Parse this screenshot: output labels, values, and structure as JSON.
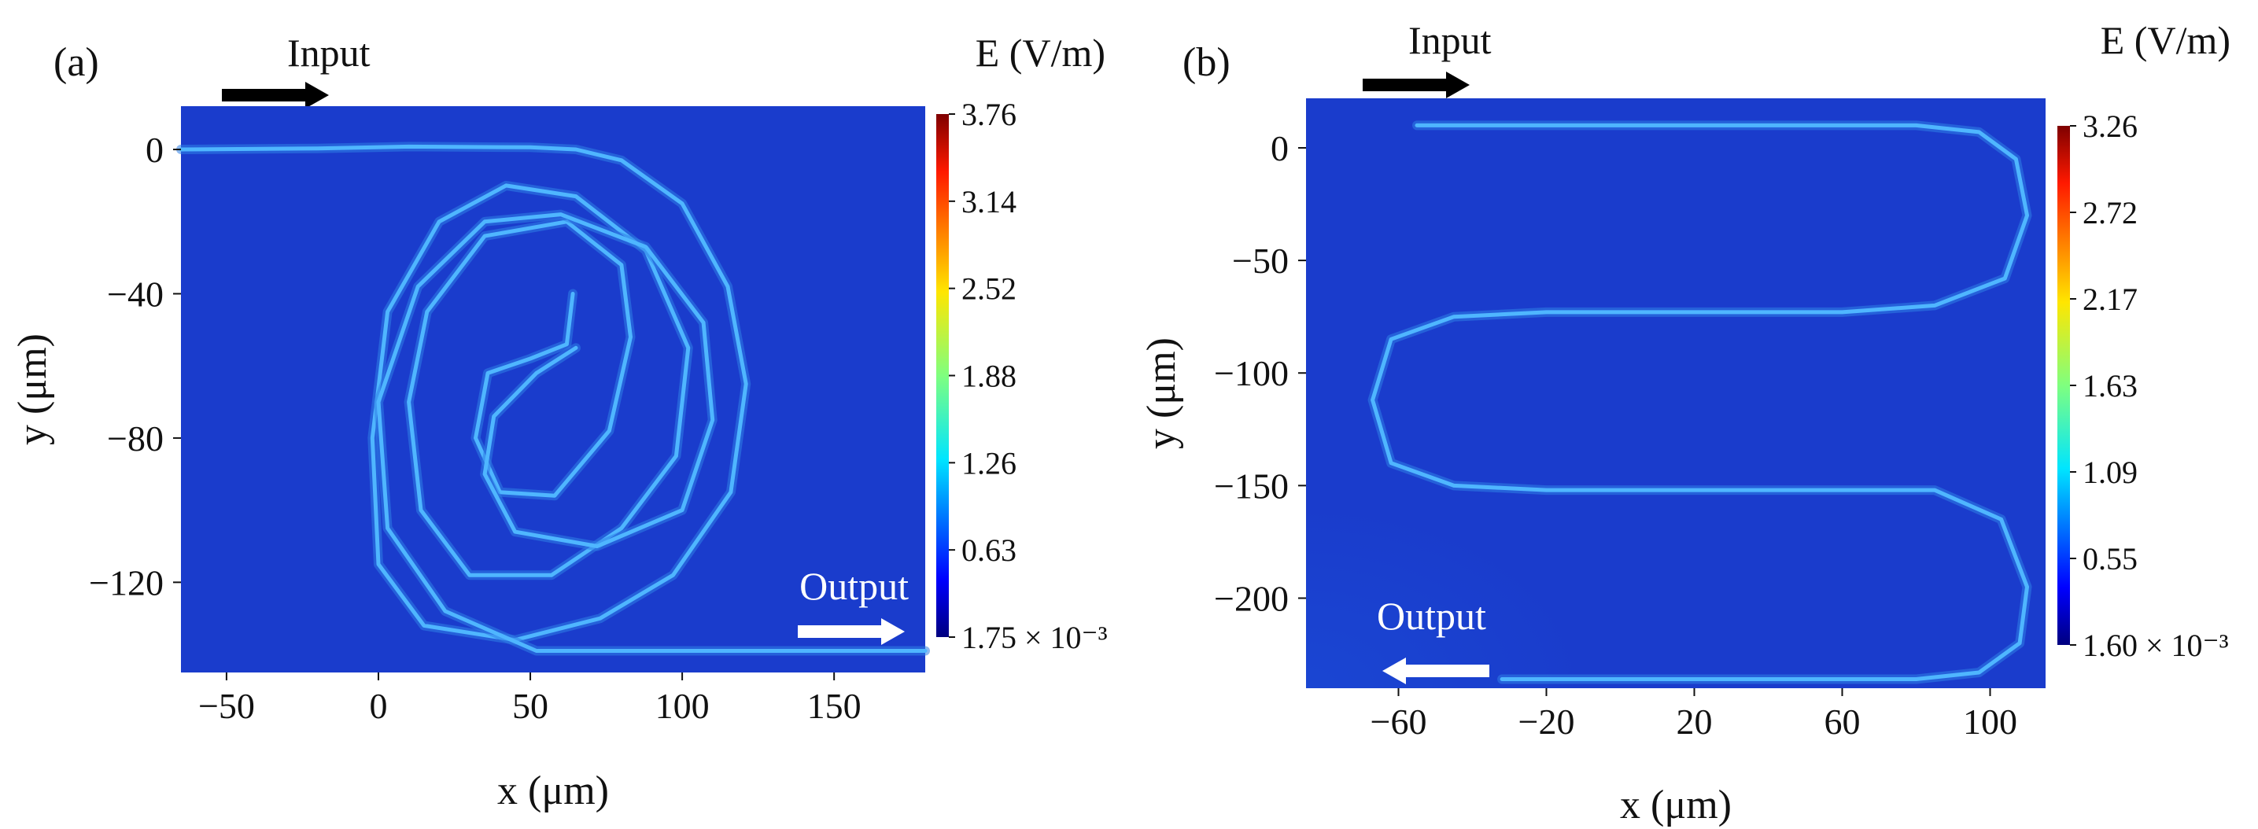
{
  "chart_data": [
    {
      "type": "heatmap",
      "panel_label": "(a)",
      "title": "",
      "colorbar_label": "E (V/m)",
      "colorbar_ticks": [
        "3.76",
        "3.14",
        "2.52",
        "1.88",
        "1.26",
        "0.63",
        "1.75 × 10⁻³"
      ],
      "colorbar_range": [
        0.00175,
        3.76
      ],
      "xlabel": "x (μm)",
      "ylabel": "y (μm)",
      "xlim": [
        -65,
        180
      ],
      "ylim": [
        -145,
        12
      ],
      "xticks": [
        -50,
        0,
        50,
        100,
        150
      ],
      "xtick_labels": [
        "−50",
        "0",
        "50",
        "100",
        "150"
      ],
      "yticks": [
        0,
        -40,
        -80,
        -120
      ],
      "ytick_labels": [
        "0",
        "−40",
        "−80",
        "−120"
      ],
      "annotations": {
        "input": "Input",
        "output": "Output"
      },
      "waveguide_path": [
        [
          -65,
          0
        ],
        [
          -20,
          0.3
        ],
        [
          10,
          0.8
        ],
        [
          50,
          0.6
        ],
        [
          65,
          0
        ],
        [
          80,
          -3
        ],
        [
          100,
          -15
        ],
        [
          115,
          -38
        ],
        [
          121,
          -65
        ],
        [
          116,
          -95
        ],
        [
          97,
          -118
        ],
        [
          73,
          -130
        ],
        [
          45,
          -136
        ],
        [
          15,
          -132
        ],
        [
          0,
          -115
        ],
        [
          -2,
          -80
        ],
        [
          3,
          -45
        ],
        [
          20,
          -20
        ],
        [
          42,
          -10
        ],
        [
          65,
          -13
        ],
        [
          88,
          -28
        ],
        [
          102,
          -55
        ],
        [
          98,
          -85
        ],
        [
          80,
          -105
        ],
        [
          57,
          -118
        ],
        [
          30,
          -118
        ],
        [
          14,
          -100
        ],
        [
          10,
          -70
        ],
        [
          16,
          -45
        ],
        [
          35,
          -24
        ],
        [
          62,
          -20
        ],
        [
          80,
          -32
        ],
        [
          83,
          -52
        ],
        [
          76,
          -78
        ],
        [
          58,
          -96
        ],
        [
          40,
          -95
        ],
        [
          32,
          -80
        ],
        [
          36,
          -62
        ],
        [
          50,
          -58
        ],
        [
          62,
          -54
        ],
        [
          64,
          -40
        ]
      ],
      "waveguide_path_output": [
        [
          65,
          -55
        ],
        [
          52,
          -62
        ],
        [
          38,
          -74
        ],
        [
          35,
          -90
        ],
        [
          45,
          -106
        ],
        [
          72,
          -110
        ],
        [
          100,
          -100
        ],
        [
          110,
          -75
        ],
        [
          107,
          -48
        ],
        [
          88,
          -27
        ],
        [
          60,
          -18
        ],
        [
          35,
          -20
        ],
        [
          13,
          -38
        ],
        [
          0,
          -70
        ],
        [
          3,
          -105
        ],
        [
          22,
          -128
        ],
        [
          52,
          -139
        ],
        [
          100,
          -139
        ],
        [
          180,
          -139
        ]
      ]
    },
    {
      "type": "heatmap",
      "panel_label": "(b)",
      "title": "",
      "colorbar_label": "E (V/m)",
      "colorbar_ticks": [
        "3.26",
        "2.72",
        "2.17",
        "1.63",
        "1.09",
        "0.55",
        "1.60 × 10⁻³"
      ],
      "colorbar_range": [
        0.0016,
        3.26
      ],
      "xlabel": "x (μm)",
      "ylabel": "y (μm)",
      "xlim": [
        -85,
        115
      ],
      "ylim": [
        -240,
        22
      ],
      "xticks": [
        -60,
        -20,
        20,
        60,
        100
      ],
      "xtick_labels": [
        "−60",
        "−20",
        "20",
        "60",
        "100"
      ],
      "yticks": [
        0,
        -50,
        -100,
        -150,
        -200
      ],
      "ytick_labels": [
        "0",
        "−50",
        "−100",
        "−150",
        "−200"
      ],
      "annotations": {
        "input": "Input",
        "output": "Output"
      },
      "waveguide_path": [
        [
          -55,
          10
        ],
        [
          -20,
          10
        ],
        [
          80,
          10
        ],
        [
          97,
          7
        ],
        [
          107,
          -5
        ],
        [
          110,
          -30
        ],
        [
          104,
          -58
        ],
        [
          85,
          -70
        ],
        [
          60,
          -73
        ],
        [
          20,
          -73
        ],
        [
          -20,
          -73
        ],
        [
          -45,
          -75
        ],
        [
          -62,
          -85
        ],
        [
          -67,
          -112
        ],
        [
          -62,
          -140
        ],
        [
          -45,
          -150
        ],
        [
          -20,
          -152
        ],
        [
          20,
          -152
        ],
        [
          60,
          -152
        ],
        [
          85,
          -152
        ],
        [
          103,
          -165
        ],
        [
          110,
          -195
        ],
        [
          108,
          -220
        ],
        [
          97,
          -233
        ],
        [
          80,
          -236
        ],
        [
          40,
          -236
        ],
        [
          0,
          -236
        ],
        [
          -32,
          -236
        ]
      ]
    }
  ]
}
